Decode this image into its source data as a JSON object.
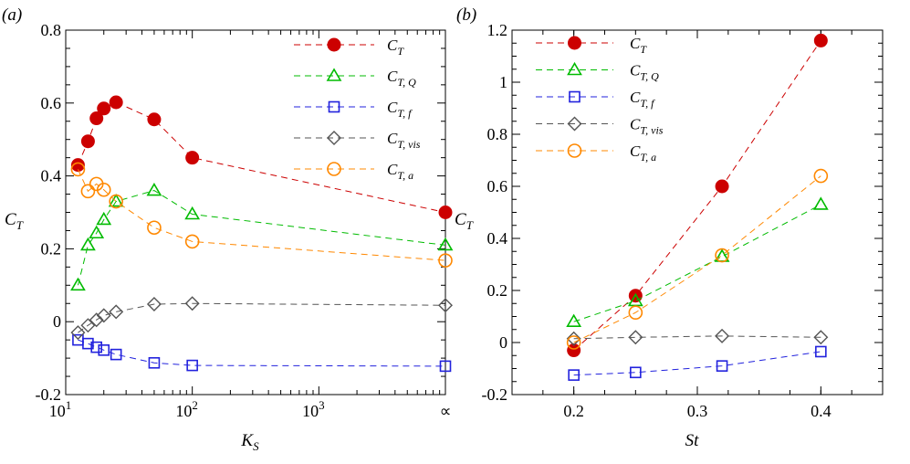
{
  "chart_data": [
    {
      "type": "line",
      "panel_label": "(a)",
      "xlabel": "K",
      "xlabel_sub": "S",
      "ylabel": "C",
      "ylabel_sub": "T",
      "xscale": "log",
      "xlim": [
        10,
        10000
      ],
      "ylim": [
        -0.2,
        0.8
      ],
      "yticks": [
        -0.2,
        0,
        0.2,
        0.4,
        0.6,
        0.8
      ],
      "ytick_labels": [
        "-0.2",
        "0",
        "0.2",
        "0.4",
        "0.6",
        "0.8"
      ],
      "xticks": [
        {
          "value": 10,
          "base": "10",
          "exp": "1"
        },
        {
          "value": 100,
          "base": "10",
          "exp": "2"
        },
        {
          "value": 1000,
          "base": "10",
          "exp": "3"
        },
        {
          "value": 10000,
          "label": "∝"
        }
      ],
      "legend_position": "top-right",
      "series": [
        {
          "key": "CT",
          "name": "C",
          "sub": "T",
          "color": "#cc0000",
          "marker": "filled-circle",
          "x": [
            12.5,
            15,
            17.5,
            20,
            25,
            50,
            100,
            10000
          ],
          "values": [
            0.43,
            0.495,
            0.558,
            0.585,
            0.602,
            0.555,
            0.45,
            0.3
          ]
        },
        {
          "key": "CTQ",
          "name": "C",
          "sub": "T, Q",
          "color": "#00bb00",
          "marker": "triangle",
          "x": [
            12.5,
            15,
            17.5,
            20,
            25,
            50,
            100,
            10000
          ],
          "values": [
            0.1,
            0.21,
            0.243,
            0.28,
            0.33,
            0.36,
            0.295,
            0.21
          ]
        },
        {
          "key": "CTf",
          "name": "C",
          "sub": "T, f",
          "color": "#2222dd",
          "marker": "square",
          "x": [
            12.5,
            15,
            17.5,
            20,
            25,
            50,
            100,
            10000
          ],
          "values": [
            -0.05,
            -0.06,
            -0.07,
            -0.078,
            -0.09,
            -0.113,
            -0.12,
            -0.122
          ]
        },
        {
          "key": "CTvis",
          "name": "C",
          "sub": "T, vis",
          "color": "#555555",
          "marker": "diamond",
          "x": [
            12.5,
            15,
            17.5,
            20,
            25,
            50,
            100,
            10000
          ],
          "values": [
            -0.03,
            -0.01,
            0.005,
            0.017,
            0.027,
            0.048,
            0.05,
            0.045
          ]
        },
        {
          "key": "CTa",
          "name": "C",
          "sub": "T, a",
          "color": "#ff8800",
          "marker": "circle",
          "x": [
            12.5,
            15,
            17.5,
            20,
            25,
            50,
            100,
            10000
          ],
          "values": [
            0.418,
            0.358,
            0.378,
            0.362,
            0.33,
            0.258,
            0.22,
            0.168
          ]
        }
      ]
    },
    {
      "type": "line",
      "panel_label": "(b)",
      "xlabel": "St",
      "xlabel_sub": "",
      "ylabel": "C",
      "ylabel_sub": "T",
      "xscale": "linear",
      "xlim": [
        0.15,
        0.45
      ],
      "ylim": [
        -0.2,
        1.2
      ],
      "yticks": [
        -0.2,
        0,
        0.2,
        0.4,
        0.6,
        0.8,
        1,
        1.2
      ],
      "ytick_labels": [
        "-0.2",
        "0",
        "0.2",
        "0.4",
        "0.6",
        "0.8",
        "1",
        "1.2"
      ],
      "xticks": [
        {
          "value": 0.2,
          "label": "0.2"
        },
        {
          "value": 0.3,
          "label": "0.3"
        },
        {
          "value": 0.4,
          "label": "0.4"
        }
      ],
      "legend_position": "top-left",
      "series": [
        {
          "key": "CT",
          "name": "C",
          "sub": "T",
          "color": "#cc0000",
          "marker": "filled-circle",
          "x": [
            0.2,
            0.25,
            0.32,
            0.4
          ],
          "values": [
            -0.03,
            0.18,
            0.6,
            1.16
          ]
        },
        {
          "key": "CTQ",
          "name": "C",
          "sub": "T, Q",
          "color": "#00bb00",
          "marker": "triangle",
          "x": [
            0.2,
            0.25,
            0.32,
            0.4
          ],
          "values": [
            0.08,
            0.16,
            0.33,
            0.53
          ]
        },
        {
          "key": "CTf",
          "name": "C",
          "sub": "T, f",
          "color": "#2222dd",
          "marker": "square",
          "x": [
            0.2,
            0.25,
            0.32,
            0.4
          ],
          "values": [
            -0.125,
            -0.115,
            -0.09,
            -0.035
          ]
        },
        {
          "key": "CTvis",
          "name": "C",
          "sub": "T, vis",
          "color": "#555555",
          "marker": "diamond",
          "x": [
            0.2,
            0.25,
            0.32,
            0.4
          ],
          "values": [
            0.015,
            0.02,
            0.025,
            0.02
          ]
        },
        {
          "key": "CTa",
          "name": "C",
          "sub": "T, a",
          "color": "#ff8800",
          "marker": "circle",
          "x": [
            0.2,
            0.25,
            0.32,
            0.4
          ],
          "values": [
            0.0,
            0.115,
            0.335,
            0.64
          ]
        }
      ]
    }
  ]
}
